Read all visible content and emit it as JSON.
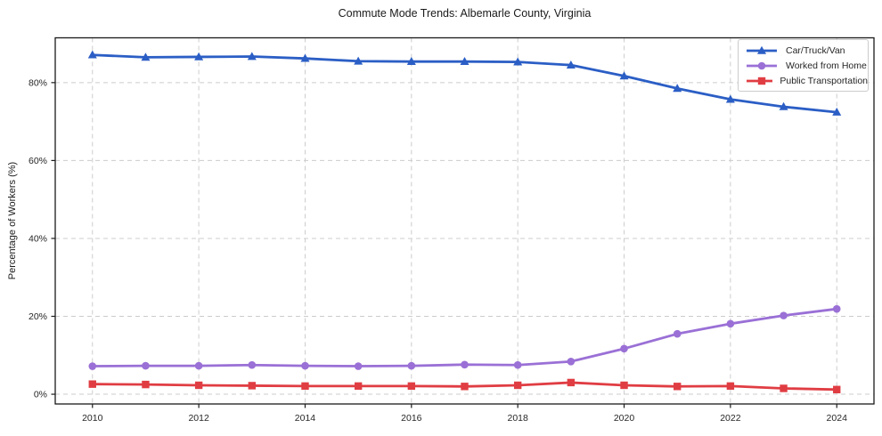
{
  "figure": {
    "title": "Commute Mode Trends: Albemarle County, Virginia"
  },
  "chart_data": {
    "type": "line",
    "title": "Commute Mode Trends: Albemarle County, Virginia",
    "xlabel": "",
    "ylabel": "Percentage of Workers (%)",
    "x": [
      2010,
      2011,
      2012,
      2013,
      2014,
      2015,
      2016,
      2017,
      2018,
      2019,
      2020,
      2021,
      2022,
      2023,
      2024
    ],
    "series": [
      {
        "name": "Car/Truck/Van",
        "color": "#2b5ec5",
        "marker": "triangle",
        "values": [
          87.1,
          86.5,
          86.6,
          86.7,
          86.2,
          85.5,
          85.4,
          85.4,
          85.3,
          84.5,
          81.7,
          78.5,
          75.7,
          73.8,
          72.4
        ]
      },
      {
        "name": "Worked from Home",
        "color": "#9a70d6",
        "marker": "circle",
        "values": [
          7.2,
          7.3,
          7.3,
          7.5,
          7.3,
          7.2,
          7.3,
          7.6,
          7.5,
          8.4,
          11.7,
          15.5,
          18.1,
          20.2,
          21.9
        ]
      },
      {
        "name": "Public Transportation",
        "color": "#e03d43",
        "marker": "square",
        "values": [
          2.6,
          2.5,
          2.3,
          2.2,
          2.1,
          2.1,
          2.1,
          2.0,
          2.3,
          3.0,
          2.3,
          2.0,
          2.1,
          1.5,
          1.2
        ]
      }
    ],
    "xlim": [
      2009.3,
      2024.7
    ],
    "ylim": [
      -2.5,
      91.5
    ],
    "xticks": [
      2010,
      2012,
      2014,
      2016,
      2018,
      2020,
      2022,
      2024
    ],
    "xtick_labels": [
      "2010",
      "2012",
      "2014",
      "2016",
      "2018",
      "2020",
      "2022",
      "2024"
    ],
    "yticks": [
      0,
      20,
      40,
      60,
      80
    ],
    "ytick_labels": [
      "0%",
      "20%",
      "40%",
      "60%",
      "80%"
    ],
    "grid": true,
    "grid_style": "dashed",
    "legend_position": "upper right",
    "colors": {
      "grid": "#cccccc",
      "spine": "#1a1a1a",
      "tick_text": "#262626",
      "background": "#ffffff"
    }
  }
}
